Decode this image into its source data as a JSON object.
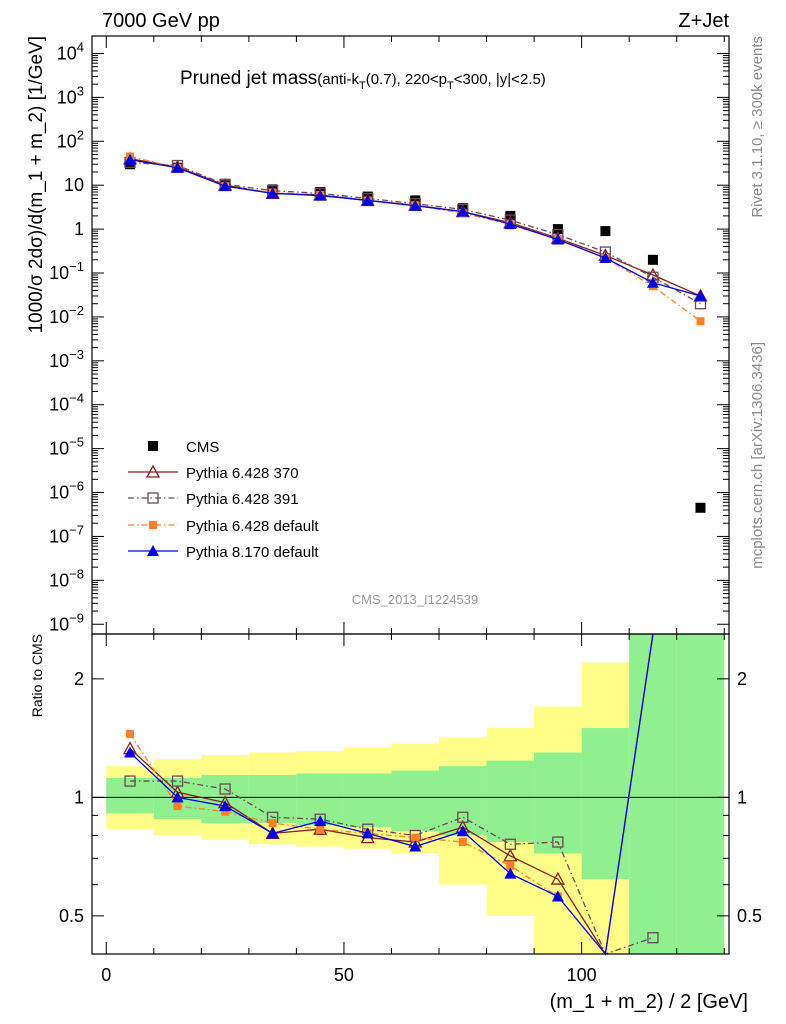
{
  "header": {
    "left": "7000 GeV pp",
    "right": "Z+Jet"
  },
  "side_text": {
    "top": "Rivet 3.1.10, ≥ 300k events",
    "bottom": "mcplots.cern.ch [arXiv:1306.3436]"
  },
  "plot_title": {
    "main": "Pruned jet mass",
    "sub": "(anti-k",
    "sub_T": "T",
    "sub_tail": "(0.7), 220<p",
    "sub_T2": "T",
    "sub_end": "<300, |y|<2.5)"
  },
  "analysis_id": "CMS_2013_I1224539",
  "ylabel_top": "1000/σ 2dσ)/d(m_1 + m_2) [1/GeV]",
  "ylabel_bottom": "Ratio to CMS",
  "xlabel": "(m_1 + m_2) / 2 [GeV]",
  "legend": {
    "cms": "CMS",
    "p370": "Pythia 6.428 370",
    "p391": "Pythia 6.428 391",
    "p6def": "Pythia 6.428 default",
    "p8def": "Pythia 8.170 default"
  },
  "colors": {
    "cms": "#000000",
    "p370": "#8b1a1a",
    "p391": "#6b4a52",
    "p6def": "#ff7f27",
    "p8def": "#0000ee",
    "band_inner": "#90f090",
    "band_outer": "#ffff88"
  },
  "chart_data": {
    "type": "scatter",
    "x": [
      5,
      15,
      25,
      35,
      45,
      55,
      65,
      75,
      85,
      95,
      105,
      115,
      125
    ],
    "x_ticks": [
      "0",
      "50",
      "100"
    ],
    "xlim": [
      -3,
      131
    ],
    "main": {
      "yscale": "log",
      "ylim": [
        6e-10,
        25000
      ],
      "y_ticks": [
        "10^-9",
        "10^-8",
        "10^-7",
        "10^-6",
        "10^-5",
        "10^-4",
        "10^-3",
        "10^-2",
        "10^-1",
        "1",
        "10",
        "10^2",
        "10^3",
        "10^4"
      ],
      "series": [
        {
          "name": "CMS",
          "values": [
            30,
            25,
            10,
            8,
            7,
            5.5,
            4.5,
            3,
            2,
            1,
            0.9,
            0.2,
            4.5e-07
          ]
        },
        {
          "name": "Pythia 6.428 370",
          "values": [
            40,
            26,
            10,
            6.5,
            6,
            4.5,
            3.5,
            2.5,
            1.4,
            0.62,
            0.25,
            0.09,
            0.03
          ]
        },
        {
          "name": "Pythia 6.428 391",
          "values": [
            33,
            28,
            10.5,
            7.5,
            6.5,
            5,
            3.8,
            2.8,
            1.6,
            0.75,
            0.3,
            0.08,
            0.02
          ]
        },
        {
          "name": "Pythia 6.428 default",
          "values": [
            45,
            25,
            9.5,
            6.8,
            6,
            4.5,
            3.5,
            2.3,
            1.3,
            0.6,
            0.22,
            0.05,
            0.008
          ]
        },
        {
          "name": "Pythia 8.170 default",
          "values": [
            38,
            25,
            9.5,
            6.5,
            5.8,
            4.5,
            3.4,
            2.5,
            1.3,
            0.58,
            0.22,
            0.06,
            0.03
          ]
        }
      ]
    },
    "ratio": {
      "yscale": "log",
      "ylim": [
        0.4,
        2.6
      ],
      "y_ticks": [
        "0.5",
        "1",
        "2"
      ],
      "band_edges": [
        0,
        10,
        20,
        30,
        40,
        50,
        60,
        70,
        80,
        90,
        100,
        110,
        120,
        130
      ],
      "band_inner": [
        [
          0.91,
          1.12
        ],
        [
          0.88,
          1.12
        ],
        [
          0.86,
          1.14
        ],
        [
          0.86,
          1.14
        ],
        [
          0.85,
          1.15
        ],
        [
          0.84,
          1.15
        ],
        [
          0.82,
          1.17
        ],
        [
          0.8,
          1.2
        ],
        [
          0.77,
          1.24
        ],
        [
          0.72,
          1.3
        ],
        [
          0.62,
          1.5
        ],
        [
          0.3,
          3
        ],
        [
          0.3,
          3
        ]
      ],
      "band_outer": [
        [
          0.83,
          1.2
        ],
        [
          0.8,
          1.25
        ],
        [
          0.78,
          1.28
        ],
        [
          0.76,
          1.3
        ],
        [
          0.75,
          1.31
        ],
        [
          0.74,
          1.34
        ],
        [
          0.72,
          1.37
        ],
        [
          0.6,
          1.42
        ],
        [
          0.5,
          1.5
        ],
        [
          0.4,
          1.7
        ],
        [
          0.38,
          2.2
        ],
        [
          0.3,
          3
        ],
        [
          0.3,
          3
        ]
      ],
      "series": [
        {
          "name": "Pythia 6.428 370",
          "values": [
            1.33,
            1.03,
            0.97,
            0.81,
            0.83,
            0.79,
            0.77,
            0.84,
            0.71,
            0.62,
            0.28,
            3.0
          ]
        },
        {
          "name": "Pythia 6.428 391",
          "values": [
            1.1,
            1.1,
            1.05,
            0.89,
            0.88,
            0.83,
            0.8,
            0.89,
            0.76,
            0.77,
            0.35,
            0.44
          ]
        },
        {
          "name": "Pythia 6.428 default",
          "values": [
            1.45,
            0.95,
            0.92,
            0.86,
            0.83,
            0.81,
            0.79,
            0.77,
            0.67,
            0.56,
            0.3,
            3.0
          ]
        },
        {
          "name": "Pythia 8.170 default",
          "values": [
            1.3,
            1.0,
            0.95,
            0.81,
            0.87,
            0.81,
            0.75,
            0.82,
            0.64,
            0.56,
            0.3,
            3.0
          ]
        }
      ]
    }
  }
}
